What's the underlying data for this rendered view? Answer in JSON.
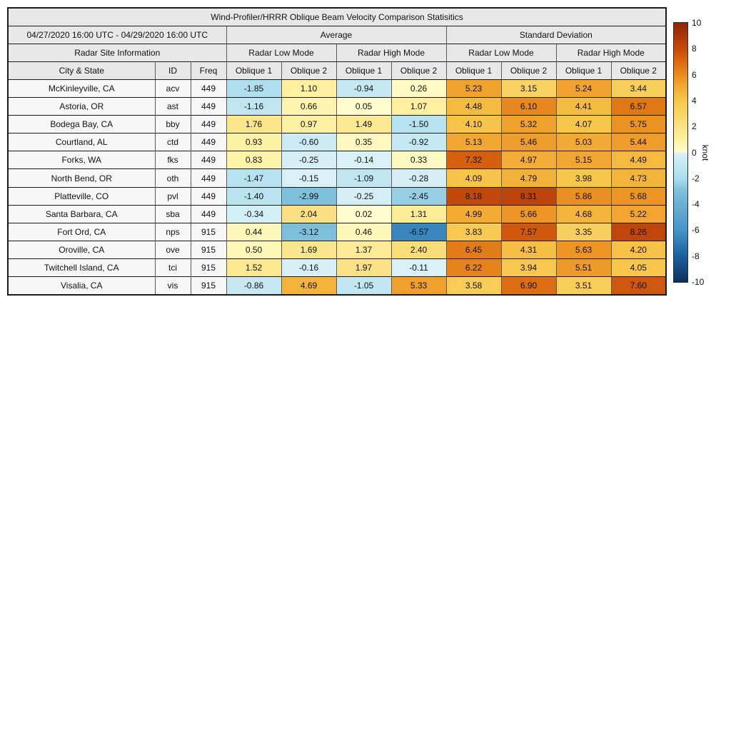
{
  "chart_data": {
    "type": "table",
    "title": "Wind-Profiler/HRRR Oblique Beam Velocity Comparison Statisitics",
    "date_range": "04/27/2020 16:00 UTC - 04/29/2020 16:00 UTC",
    "group_headers": {
      "site_info": "Radar Site Information",
      "average": "Average",
      "std_dev": "Standard Deviation"
    },
    "mode_headers": [
      "Radar Low Mode",
      "Radar High Mode",
      "Radar Low Mode",
      "Radar High Mode"
    ],
    "column_headers": [
      "City & State",
      "ID",
      "Freq",
      "Oblique 1",
      "Oblique 2",
      "Oblique 1",
      "Oblique 2",
      "Oblique 1",
      "Oblique 2",
      "Oblique 1",
      "Oblique 2"
    ],
    "rows": [
      {
        "city": "McKinleyville, CA",
        "id": "acv",
        "freq": "449",
        "values": [
          -1.85,
          1.1,
          -0.94,
          0.26,
          5.23,
          3.15,
          5.24,
          3.44
        ]
      },
      {
        "city": "Astoria, OR",
        "id": "ast",
        "freq": "449",
        "values": [
          -1.16,
          0.66,
          0.05,
          1.07,
          4.48,
          6.1,
          4.41,
          6.57
        ]
      },
      {
        "city": "Bodega Bay, CA",
        "id": "bby",
        "freq": "449",
        "values": [
          1.76,
          0.97,
          1.49,
          -1.5,
          4.1,
          5.32,
          4.07,
          5.75
        ]
      },
      {
        "city": "Courtland, AL",
        "id": "ctd",
        "freq": "449",
        "values": [
          0.93,
          -0.6,
          0.35,
          -0.92,
          5.13,
          5.46,
          5.03,
          5.44
        ]
      },
      {
        "city": "Forks, WA",
        "id": "fks",
        "freq": "449",
        "values": [
          0.83,
          -0.25,
          -0.14,
          0.33,
          7.32,
          4.97,
          5.15,
          4.49
        ]
      },
      {
        "city": "North Bend, OR",
        "id": "oth",
        "freq": "449",
        "values": [
          -1.47,
          -0.15,
          -1.09,
          -0.28,
          4.09,
          4.79,
          3.98,
          4.73
        ]
      },
      {
        "city": "Platteville, CO",
        "id": "pvl",
        "freq": "449",
        "values": [
          -1.4,
          -2.99,
          -0.25,
          -2.45,
          8.18,
          8.31,
          5.86,
          5.68
        ]
      },
      {
        "city": "Santa Barbara, CA",
        "id": "sba",
        "freq": "449",
        "values": [
          -0.34,
          2.04,
          0.02,
          1.31,
          4.99,
          5.66,
          4.68,
          5.22
        ]
      },
      {
        "city": "Fort Ord, CA",
        "id": "nps",
        "freq": "915",
        "values": [
          0.44,
          -3.12,
          0.46,
          -6.57,
          3.83,
          7.57,
          3.35,
          8.26
        ]
      },
      {
        "city": "Oroville, CA",
        "id": "ove",
        "freq": "915",
        "values": [
          0.5,
          1.69,
          1.37,
          2.4,
          6.45,
          4.31,
          5.63,
          4.2
        ]
      },
      {
        "city": "Twitchell Island, CA",
        "id": "tci",
        "freq": "915",
        "values": [
          1.52,
          -0.16,
          1.97,
          -0.11,
          6.22,
          3.94,
          5.51,
          4.05
        ]
      },
      {
        "city": "Visalia, CA",
        "id": "vis",
        "freq": "915",
        "values": [
          -0.86,
          4.69,
          -1.05,
          5.33,
          3.58,
          6.9,
          3.51,
          7.6
        ]
      }
    ],
    "colorbar": {
      "label": "knot",
      "domain": [
        -10,
        10
      ],
      "ticks": [
        10,
        8,
        6,
        4,
        2,
        0,
        -2,
        -4,
        -6,
        -8,
        -10
      ],
      "colormap_anchors": [
        [
          -10,
          "#0c3062"
        ],
        [
          -8,
          "#1b60a1"
        ],
        [
          -6,
          "#4495c8"
        ],
        [
          -4,
          "#6bb0d6"
        ],
        [
          -3,
          "#7fc0dc"
        ],
        [
          -2,
          "#abdded"
        ],
        [
          -0.001,
          "#dcf1f7"
        ],
        [
          0.001,
          "#fffdd0"
        ],
        [
          1,
          "#fdf0a0"
        ],
        [
          2,
          "#fbe184"
        ],
        [
          3,
          "#f9d466"
        ],
        [
          4,
          "#f7c74b"
        ],
        [
          5,
          "#f3ab34"
        ],
        [
          6,
          "#e98a1e"
        ],
        [
          7,
          "#da6a10"
        ],
        [
          8,
          "#c64a0b"
        ],
        [
          10,
          "#8f2408"
        ]
      ]
    }
  }
}
